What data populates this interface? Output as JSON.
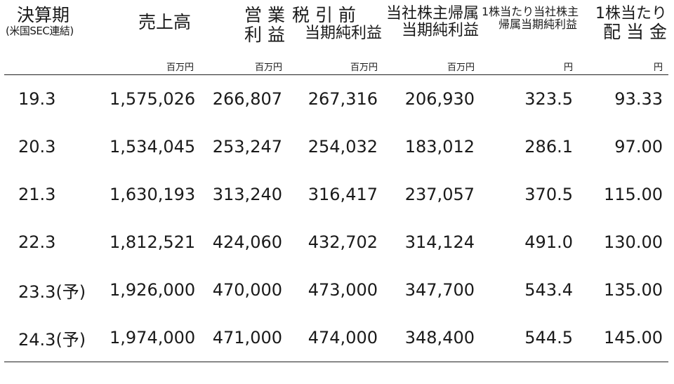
{
  "headers": {
    "period": {
      "line1": "決算期",
      "line2": "(米国SEC連結)"
    },
    "sales": "売上高",
    "operating_profit": {
      "line1": "営 業",
      "line2": "利 益"
    },
    "pretax_profit": {
      "line1": "税 引 前",
      "line2": "当期純利益"
    },
    "net_income": {
      "line1": "当社株主帰属",
      "line2": "当期純利益"
    },
    "eps": {
      "line1": "1株当たり当社株主",
      "line2": "帰属当期純利益"
    },
    "dps": {
      "line1": "1株当たり",
      "line2": "配 当 金"
    }
  },
  "units": {
    "sales": "百万円",
    "operating_profit": "百万円",
    "pretax_profit": "百万円",
    "net_income": "百万円",
    "eps": "円",
    "dps": "円"
  },
  "rows": [
    {
      "period": "19.3",
      "sales": "1,575,026",
      "operating_profit": "266,807",
      "pretax_profit": "267,316",
      "net_income": "206,930",
      "eps": "323.5",
      "dps": "93.33"
    },
    {
      "period": "20.3",
      "sales": "1,534,045",
      "operating_profit": "253,247",
      "pretax_profit": "254,032",
      "net_income": "183,012",
      "eps": "286.1",
      "dps": "97.00"
    },
    {
      "period": "21.3",
      "sales": "1,630,193",
      "operating_profit": "313,240",
      "pretax_profit": "316,417",
      "net_income": "237,057",
      "eps": "370.5",
      "dps": "115.00"
    },
    {
      "period": "22.3",
      "sales": "1,812,521",
      "operating_profit": "424,060",
      "pretax_profit": "432,702",
      "net_income": "314,124",
      "eps": "491.0",
      "dps": "130.00"
    },
    {
      "period": "23.3(予)",
      "sales": "1,926,000",
      "operating_profit": "470,000",
      "pretax_profit": "473,000",
      "net_income": "347,700",
      "eps": "543.4",
      "dps": "135.00"
    },
    {
      "period": "24.3(予)",
      "sales": "1,974,000",
      "operating_profit": "471,000",
      "pretax_profit": "474,000",
      "net_income": "348,400",
      "eps": "544.5",
      "dps": "145.00"
    }
  ]
}
